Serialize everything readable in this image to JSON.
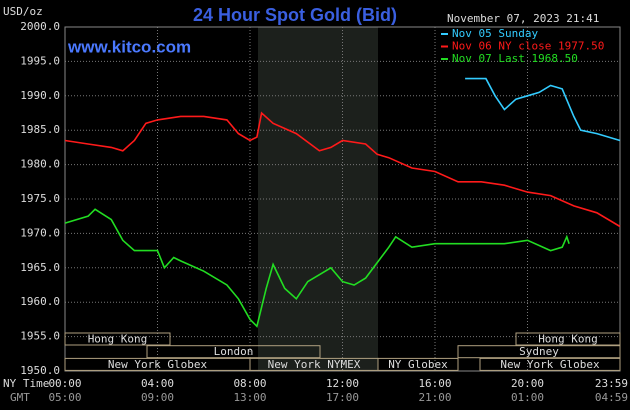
{
  "chart_data": {
    "type": "line",
    "title": "24 Hour Spot Gold (Bid)",
    "y_label": "USD/oz",
    "timestamp": "November 07, 2023 21:41",
    "site": "www.kitco.com",
    "x_label": "NY Time",
    "x2_label": "GMT",
    "xlim": [
      0,
      24
    ],
    "xticks": [
      {
        "value": 0,
        "label": "00:00"
      },
      {
        "value": 4,
        "label": "04:00"
      },
      {
        "value": 8,
        "label": "08:00"
      },
      {
        "value": 12,
        "label": "12:00"
      },
      {
        "value": 16,
        "label": "16:00"
      },
      {
        "value": 20,
        "label": "20:00"
      },
      {
        "value": 23.983,
        "label": "23:59"
      }
    ],
    "x2ticks": [
      "05:00",
      "09:00",
      "13:00",
      "17:00",
      "21:00",
      "01:00",
      "04:59"
    ],
    "ylim": [
      1950,
      2000
    ],
    "yticks": [
      {
        "value": 1950,
        "label": "1950.0"
      },
      {
        "value": 1955,
        "label": "1955.0"
      },
      {
        "value": 1960,
        "label": "1960.0"
      },
      {
        "value": 1965,
        "label": "1965.0"
      },
      {
        "value": 1970,
        "label": "1970.0"
      },
      {
        "value": 1975,
        "label": "1975.0"
      },
      {
        "value": 1980,
        "label": "1980.0"
      },
      {
        "value": 1985,
        "label": "1985.0"
      },
      {
        "value": 1990,
        "label": "1990.0"
      },
      {
        "value": 1995,
        "label": "1995.0"
      },
      {
        "value": 2000,
        "label": "2000.0"
      }
    ],
    "grid": true,
    "sessions": [
      "Hong Kong",
      "London",
      "New York Globex",
      "New York NYMEX",
      "NY Globex",
      "Hong Kong",
      "Sydney",
      "New York Globex"
    ],
    "series": [
      {
        "name": "Nov 05 Sunday",
        "color": "#33ccff",
        "x": [
          17.3,
          18.2,
          18.6,
          19,
          19.5,
          20,
          20.5,
          21,
          21.5,
          22,
          22.3,
          23,
          24
        ],
        "values": [
          1992.5,
          1992.5,
          1990,
          1988,
          1989.5,
          1990,
          1990.5,
          1991.5,
          1991,
          1987,
          1985,
          1984.5,
          1983.5
        ]
      },
      {
        "name": "Nov 06 NY close 1977.50",
        "color": "#ff1a1a",
        "x": [
          0,
          1,
          2,
          2.5,
          3,
          3.5,
          4,
          5,
          6,
          7,
          7.5,
          8,
          8.3,
          8.5,
          9,
          10,
          11,
          11.5,
          12,
          13,
          13.5,
          14,
          15,
          16,
          17,
          18,
          19,
          20,
          21,
          22,
          23,
          24
        ],
        "values": [
          1983.5,
          1983,
          1982.5,
          1982,
          1983.5,
          1986,
          1986.5,
          1987,
          1987,
          1986.5,
          1984.5,
          1983.5,
          1984,
          1987.5,
          1986,
          1984.5,
          1982,
          1982.5,
          1983.5,
          1983,
          1981.5,
          1981,
          1979.5,
          1979,
          1977.5,
          1977.5,
          1977,
          1976,
          1975.5,
          1974,
          1973,
          1971
        ]
      },
      {
        "name": "Nov 07 Last 1968.50",
        "color": "#22dd22",
        "x": [
          0,
          1,
          1.3,
          2,
          2.5,
          3,
          4,
          4.3,
          4.7,
          5,
          6,
          7,
          7.5,
          8,
          8.3,
          8.7,
          9,
          9.5,
          10,
          10.5,
          11,
          11.5,
          12,
          12.5,
          13,
          14,
          14.3,
          15,
          16,
          17,
          18,
          19,
          20,
          21,
          21.5,
          21.7,
          21.8
        ],
        "values": [
          1971.5,
          1972.5,
          1973.5,
          1972,
          1969,
          1967.5,
          1967.5,
          1965,
          1966.5,
          1966,
          1964.5,
          1962.5,
          1960.5,
          1957.5,
          1956.5,
          1962,
          1965.5,
          1962,
          1960.5,
          1963,
          1964,
          1965,
          1963,
          1962.5,
          1963.5,
          1968,
          1969.5,
          1968,
          1968.5,
          1968.5,
          1968.5,
          1968.5,
          1969,
          1967.5,
          1968,
          1969.5,
          1968.5
        ]
      }
    ]
  }
}
